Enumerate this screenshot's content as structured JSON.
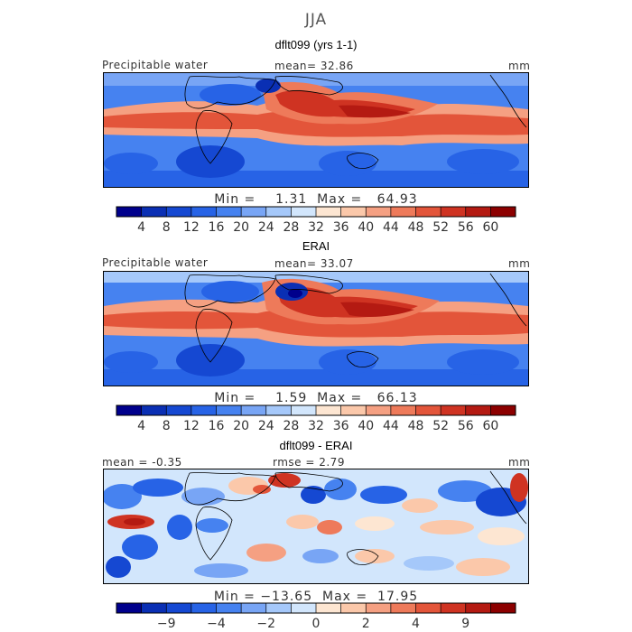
{
  "figure": {
    "title": "JJA",
    "units": "mm"
  },
  "panels": [
    {
      "id": "model",
      "title": "dflt099 (yrs 1-1)",
      "label_left": "Precipitable water",
      "stat_center": "mean=  32.86",
      "units": "mm",
      "min_max": "Min =    1.31  Max =   64.93",
      "colorbar": "abs"
    },
    {
      "id": "obs",
      "title": "ERAI",
      "label_left": "Precipitable water",
      "stat_center": "mean=  33.07",
      "units": "mm",
      "min_max": "Min =    1.59  Max =   66.13",
      "colorbar": "abs"
    },
    {
      "id": "diff",
      "title": "dflt099 - ERAI",
      "label_left": "mean =  -0.35",
      "stat_center": "rmse =   2.79",
      "units": "mm",
      "min_max": "Min = −13.65  Max =  17.95",
      "colorbar": "diff"
    }
  ],
  "colorbars": {
    "abs": {
      "colors": [
        "#00008c",
        "#0a2fb4",
        "#1548d2",
        "#2763e6",
        "#4682f0",
        "#78a5f5",
        "#a5c8fa",
        "#d2e6fc",
        "#fde6d2",
        "#fbc8aa",
        "#f5a082",
        "#ee7a5a",
        "#e3553a",
        "#cf3322",
        "#b41a12",
        "#8c0000"
      ],
      "tick_labels": [
        "4",
        "8",
        "12",
        "16",
        "20",
        "24",
        "28",
        "32",
        "36",
        "40",
        "44",
        "48",
        "52",
        "56",
        "60"
      ]
    },
    "diff": {
      "colors": [
        "#00008c",
        "#0a2fb4",
        "#1548d2",
        "#2763e6",
        "#4682f0",
        "#78a5f5",
        "#a5c8fa",
        "#d2e6fc",
        "#fde6d2",
        "#fbc8aa",
        "#f5a082",
        "#ee7a5a",
        "#e3553a",
        "#cf3322",
        "#b41a12",
        "#8c0000"
      ],
      "tick_labels": [
        "−9",
        "−4",
        "−2",
        "0",
        "2",
        "4",
        "9"
      ],
      "tick_positions": [
        2,
        4,
        6,
        8,
        10,
        12,
        14
      ]
    }
  },
  "chart_data": [
    {
      "type": "heatmap",
      "title": "dflt099 (yrs 1-1)",
      "field": "Precipitable water",
      "units": "mm",
      "mean": 32.86,
      "min": 1.31,
      "max": 64.93,
      "levels": [
        4,
        8,
        12,
        16,
        20,
        24,
        28,
        32,
        36,
        40,
        44,
        48,
        52,
        56,
        60
      ],
      "grid": false,
      "legend": "bottom"
    },
    {
      "type": "heatmap",
      "title": "ERAI",
      "field": "Precipitable water",
      "units": "mm",
      "mean": 33.07,
      "min": 1.59,
      "max": 66.13,
      "levels": [
        4,
        8,
        12,
        16,
        20,
        24,
        28,
        32,
        36,
        40,
        44,
        48,
        52,
        56,
        60
      ],
      "grid": false,
      "legend": "bottom"
    },
    {
      "type": "heatmap",
      "title": "dflt099 - ERAI",
      "units": "mm",
      "mean": -0.35,
      "rmse": 2.79,
      "min": -13.65,
      "max": 17.95,
      "levels": [
        -9,
        -4,
        -2,
        0,
        2,
        4,
        9
      ],
      "grid": false,
      "legend": "bottom"
    }
  ]
}
